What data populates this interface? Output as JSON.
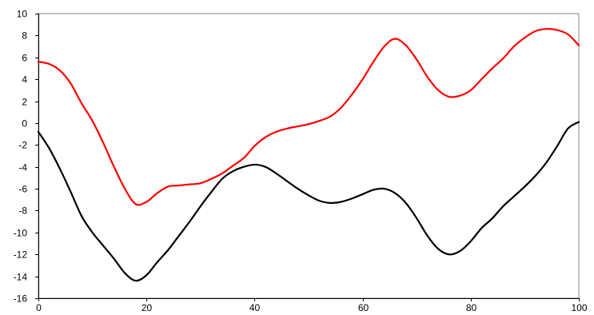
{
  "chart_data": {
    "type": "line",
    "title": "",
    "xlabel": "",
    "ylabel": "",
    "xlim": [
      0,
      100
    ],
    "ylim": [
      -16,
      10
    ],
    "x_ticks": [
      0,
      20,
      40,
      60,
      80,
      100
    ],
    "y_ticks": [
      10,
      8,
      6,
      4,
      2,
      0,
      -2,
      -4,
      -6,
      -8,
      -10,
      -12,
      -14,
      -16
    ],
    "grid": true,
    "legend": "none",
    "series": [
      {
        "color": "#ff0000",
        "x": [
          0,
          2,
          4,
          6,
          8,
          10,
          12,
          14,
          16,
          18,
          20,
          22,
          24,
          26,
          28,
          30,
          32,
          34,
          36,
          38,
          40,
          42,
          44,
          46,
          48,
          50,
          52,
          54,
          56,
          58,
          60,
          62,
          64,
          66,
          68,
          70,
          72,
          74,
          76,
          78,
          80,
          82,
          84,
          86,
          88,
          90,
          92,
          94,
          96,
          98,
          100
        ],
        "y": [
          5.6,
          5.4,
          4.8,
          3.6,
          1.8,
          0.2,
          -1.8,
          -4.0,
          -6.0,
          -7.4,
          -7.2,
          -6.4,
          -5.8,
          -5.7,
          -5.6,
          -5.5,
          -5.1,
          -4.6,
          -3.9,
          -3.2,
          -2.1,
          -1.3,
          -0.8,
          -0.5,
          -0.3,
          -0.1,
          0.2,
          0.6,
          1.4,
          2.6,
          4.0,
          5.6,
          7.0,
          7.7,
          7.1,
          5.8,
          4.2,
          3.0,
          2.4,
          2.5,
          3.0,
          4.0,
          5.0,
          5.9,
          7.0,
          7.8,
          8.4,
          8.6,
          8.5,
          8.1,
          7.1
        ]
      },
      {
        "color": "#000000",
        "x": [
          0,
          2,
          4,
          6,
          8,
          10,
          12,
          14,
          16,
          18,
          20,
          22,
          24,
          26,
          28,
          30,
          32,
          34,
          36,
          38,
          40,
          42,
          44,
          46,
          48,
          50,
          52,
          54,
          56,
          58,
          60,
          62,
          64,
          66,
          68,
          70,
          72,
          74,
          76,
          78,
          80,
          82,
          84,
          86,
          88,
          90,
          92,
          94,
          96,
          98,
          100
        ],
        "y": [
          -0.8,
          -2.3,
          -4.2,
          -6.3,
          -8.5,
          -10.0,
          -11.2,
          -12.4,
          -13.7,
          -14.4,
          -13.9,
          -12.7,
          -11.6,
          -10.3,
          -9.0,
          -7.6,
          -6.3,
          -5.1,
          -4.4,
          -4.0,
          -3.8,
          -4.0,
          -4.6,
          -5.3,
          -6.0,
          -6.6,
          -7.1,
          -7.3,
          -7.2,
          -6.9,
          -6.5,
          -6.1,
          -6.0,
          -6.4,
          -7.3,
          -8.7,
          -10.3,
          -11.5,
          -12.0,
          -11.7,
          -10.8,
          -9.6,
          -8.7,
          -7.6,
          -6.7,
          -5.8,
          -4.8,
          -3.6,
          -2.1,
          -0.5,
          0.1
        ]
      }
    ]
  }
}
